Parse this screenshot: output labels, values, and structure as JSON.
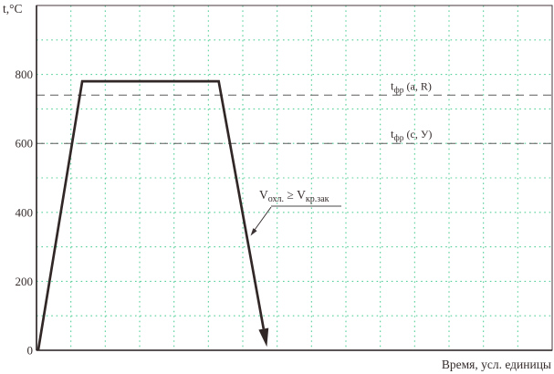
{
  "chart_data": {
    "type": "line",
    "ylabel": "t,°C",
    "xlabel": "Время, усл. единицы",
    "ylim": [
      0,
      1000
    ],
    "xlim": [
      0,
      15
    ],
    "y_ticks": [
      0,
      200,
      400,
      600,
      800
    ],
    "y_gridline_step": 100,
    "x_gridline_step": 1,
    "grid_on": true,
    "grid_color": "#57d099",
    "curve_color": "#322727",
    "dash_color": "#5c5c5c",
    "series": [
      {
        "points": [
          [
            0.05,
            0
          ],
          [
            1.33,
            780
          ],
          [
            5.3,
            780
          ],
          [
            6.7,
            10
          ]
        ],
        "arrow_end": true
      }
    ],
    "reference_lines": [
      {
        "value": 740,
        "label_main": "t",
        "label_sub": "фр",
        "label_rest": " (а, R)"
      },
      {
        "value": 600,
        "label_main": "t",
        "label_sub": "фр",
        "label_rest": " (с, У)"
      }
    ],
    "annotation": {
      "segments": [
        {
          "t": "V"
        },
        {
          "t": "охл.",
          "sub": true
        },
        {
          "t": " ≥ V"
        },
        {
          "t": "кр.зак",
          "sub": true
        }
      ],
      "underlined": true
    }
  }
}
